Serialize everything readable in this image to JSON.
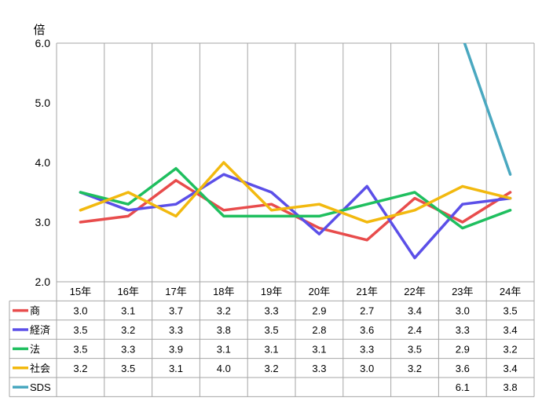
{
  "chart_data": {
    "type": "line",
    "yunit": "倍",
    "ylim": [
      2.0,
      6.0
    ],
    "yticks": [
      "2.0",
      "3.0",
      "4.0",
      "5.0",
      "6.0"
    ],
    "grid": "vertical",
    "legend": "table-below",
    "categories": [
      "15年",
      "16年",
      "17年",
      "18年",
      "19年",
      "20年",
      "21年",
      "22年",
      "23年",
      "24年"
    ],
    "series": [
      {
        "name": "商",
        "color": "#e84c4c",
        "values": [
          3.0,
          3.1,
          3.7,
          3.2,
          3.3,
          2.9,
          2.7,
          3.4,
          3.0,
          3.5
        ],
        "labels": [
          "3.0",
          "3.1",
          "3.7",
          "3.2",
          "3.3",
          "2.9",
          "2.7",
          "3.4",
          "3.0",
          "3.5"
        ]
      },
      {
        "name": "経済",
        "color": "#5b4fe8",
        "values": [
          3.5,
          3.2,
          3.3,
          3.8,
          3.5,
          2.8,
          3.6,
          2.4,
          3.3,
          3.4
        ],
        "labels": [
          "3.5",
          "3.2",
          "3.3",
          "3.8",
          "3.5",
          "2.8",
          "3.6",
          "2.4",
          "3.3",
          "3.4"
        ]
      },
      {
        "name": "法",
        "color": "#1fbf5f",
        "values": [
          3.5,
          3.3,
          3.9,
          3.1,
          3.1,
          3.1,
          3.3,
          3.5,
          2.9,
          3.2
        ],
        "labels": [
          "3.5",
          "3.3",
          "3.9",
          "3.1",
          "3.1",
          "3.1",
          "3.3",
          "3.5",
          "2.9",
          "3.2"
        ]
      },
      {
        "name": "社会",
        "color": "#f2b90f",
        "values": [
          3.2,
          3.5,
          3.1,
          4.0,
          3.2,
          3.3,
          3.0,
          3.2,
          3.6,
          3.4
        ],
        "labels": [
          "3.2",
          "3.5",
          "3.1",
          "4.0",
          "3.2",
          "3.3",
          "3.0",
          "3.2",
          "3.6",
          "3.4"
        ]
      },
      {
        "name": "SDS",
        "color": "#4aa8c0",
        "values": [
          null,
          null,
          null,
          null,
          null,
          null,
          null,
          null,
          6.1,
          3.8
        ],
        "labels": [
          "",
          "",
          "",
          "",
          "",
          "",
          "",
          "",
          "6.1",
          "3.8"
        ]
      }
    ]
  }
}
